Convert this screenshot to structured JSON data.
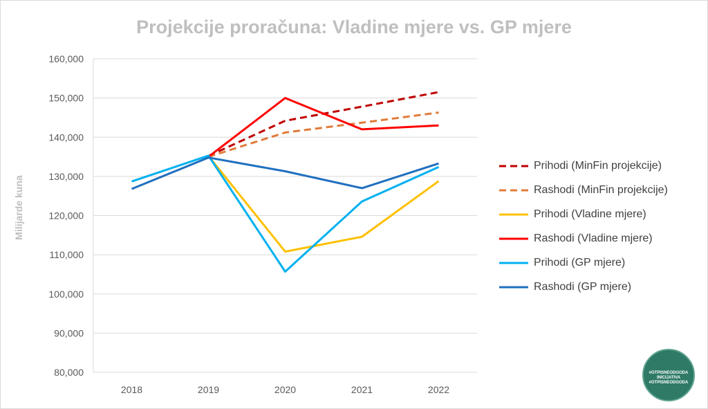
{
  "chart_data": {
    "type": "line",
    "title": "Projekcije proračuna: Vladine mjere vs. GP mjere",
    "xlabel": "",
    "ylabel": "Milijarde kuna",
    "categories": [
      "2018",
      "2019",
      "2020",
      "2021",
      "2022"
    ],
    "ylim": [
      80000,
      160000
    ],
    "yticks": [
      "80,000",
      "90,000",
      "100,000",
      "110,000",
      "120,000",
      "130,000",
      "140,000",
      "150,000",
      "160,000"
    ],
    "ytick_values": [
      80000,
      90000,
      100000,
      110000,
      120000,
      130000,
      140000,
      150000,
      160000
    ],
    "grid": true,
    "legend_position": "right",
    "series": [
      {
        "name": "Prihodi (MinFin projekcije)",
        "color": "#c00000",
        "dashed": true,
        "values": [
          null,
          135200,
          144200,
          147800,
          151500
        ]
      },
      {
        "name": "Rashodi (MinFin projekcije)",
        "color": "#e07b39",
        "dashed": true,
        "values": [
          null,
          135000,
          141200,
          143700,
          146300
        ]
      },
      {
        "name": "Prihodi (Vladine mjere)",
        "color": "#ffc000",
        "dashed": false,
        "values": [
          null,
          135200,
          110800,
          114600,
          128800
        ]
      },
      {
        "name": "Rashodi (Vladine mjere)",
        "color": "#ff0000",
        "dashed": false,
        "values": [
          null,
          135000,
          150000,
          142000,
          143000
        ]
      },
      {
        "name": "Prihodi (GP mjere)",
        "color": "#00b0f0",
        "dashed": false,
        "values": [
          128700,
          135300,
          105700,
          123600,
          132400
        ]
      },
      {
        "name": "Rashodi (GP mjere)",
        "color": "#1f6fbf",
        "dashed": false,
        "values": [
          126800,
          134800,
          131300,
          127000,
          133300
        ]
      }
    ]
  },
  "badge": {
    "text_top": "#OTPISNEODGODA",
    "text_middle": "INICIJATIVA",
    "text_bottom": "#OTPISNEODGODA"
  }
}
